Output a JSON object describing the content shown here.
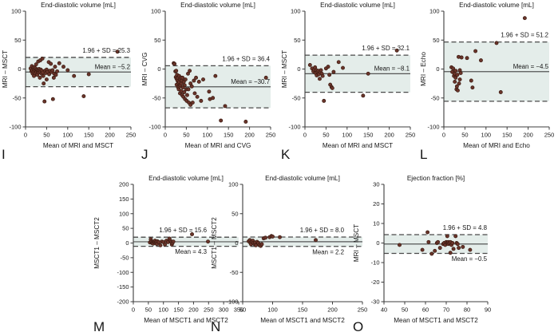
{
  "figure": {
    "background": "#ffffff",
    "description": "Bland-Altman agreement plots, panels I to O"
  },
  "style": {
    "point_fill": "#6a342a",
    "point_stroke": "#381a10",
    "band_fill": "#e4edea",
    "mean_line_color": "#555555",
    "dash_line_color": "#4a4a4a",
    "axis_color": "#3c3c3c",
    "text_color": "#161616"
  },
  "chart_data": [
    {
      "id": "I",
      "type": "scatter",
      "title": "End-diastolic volume [mL]",
      "xlabel": "Mean of MRI and MSCT",
      "ylabel": "MRI – MSCT",
      "xlim": [
        0,
        250
      ],
      "xticks": [
        0,
        50,
        100,
        150,
        200,
        250
      ],
      "ylim": [
        -100,
        100
      ],
      "yticks": [
        -100,
        -50,
        0,
        50,
        100
      ],
      "mean": -5.2,
      "loa_upper": 20.1,
      "loa_lower": -30.5,
      "sd_label": "1.96 + SD = 25.3",
      "mean_label": "Mean = −5.2",
      "mean_label_position": "above",
      "points": [
        [
          12,
          1
        ],
        [
          14,
          -4
        ],
        [
          15,
          5
        ],
        [
          16,
          -2
        ],
        [
          17,
          -8
        ],
        [
          18,
          2
        ],
        [
          19,
          -5
        ],
        [
          20,
          0
        ],
        [
          20,
          -12
        ],
        [
          21,
          3
        ],
        [
          22,
          -3
        ],
        [
          23,
          -7
        ],
        [
          24,
          1
        ],
        [
          25,
          8
        ],
        [
          25,
          -2
        ],
        [
          26,
          -5
        ],
        [
          27,
          -1
        ],
        [
          28,
          -10
        ],
        [
          29,
          -4
        ],
        [
          30,
          13
        ],
        [
          30,
          -2
        ],
        [
          31,
          -6
        ],
        [
          32,
          0
        ],
        [
          33,
          -3
        ],
        [
          34,
          -15
        ],
        [
          35,
          15
        ],
        [
          35,
          -5
        ],
        [
          36,
          -1
        ],
        [
          38,
          -8
        ],
        [
          39,
          -3
        ],
        [
          40,
          18
        ],
        [
          41,
          -6
        ],
        [
          42,
          -12
        ],
        [
          43,
          -25
        ],
        [
          45,
          -56
        ],
        [
          46,
          -3
        ],
        [
          48,
          -7
        ],
        [
          50,
          -1
        ],
        [
          50,
          -18
        ],
        [
          52,
          -5
        ],
        [
          55,
          12
        ],
        [
          56,
          -9
        ],
        [
          58,
          -3
        ],
        [
          60,
          9
        ],
        [
          62,
          -5
        ],
        [
          64,
          -2
        ],
        [
          65,
          -52
        ],
        [
          67,
          -15
        ],
        [
          68,
          -8
        ],
        [
          70,
          4
        ],
        [
          72,
          -10
        ],
        [
          75,
          -4
        ],
        [
          80,
          10
        ],
        [
          90,
          4
        ],
        [
          100,
          -2
        ],
        [
          115,
          -12
        ],
        [
          138,
          -47
        ],
        [
          150,
          -9
        ],
        [
          218,
          30
        ]
      ]
    },
    {
      "id": "J",
      "type": "scatter",
      "title": "End-diastolic volume [mL]",
      "xlabel": "Mean of MRI and CVG",
      "ylabel": "MRI – CVG",
      "xlim": [
        0,
        250
      ],
      "xticks": [
        0,
        50,
        100,
        150,
        200,
        250
      ],
      "ylim": [
        -100,
        100
      ],
      "yticks": [
        -100,
        -50,
        0,
        50,
        100
      ],
      "mean": -30.7,
      "loa_upper": 5.7,
      "loa_lower": -67.1,
      "sd_label": "1.96 + SD = 36.4",
      "mean_label": "Mean = −30.7",
      "mean_label_position": "above",
      "points": [
        [
          20,
          10
        ],
        [
          22,
          9
        ],
        [
          24,
          -4
        ],
        [
          25,
          -14
        ],
        [
          26,
          -3
        ],
        [
          27,
          -17
        ],
        [
          27,
          -27
        ],
        [
          28,
          -10
        ],
        [
          29,
          -20
        ],
        [
          30,
          -31
        ],
        [
          30,
          -15
        ],
        [
          31,
          -24
        ],
        [
          32,
          -35
        ],
        [
          33,
          -12
        ],
        [
          33,
          -22
        ],
        [
          34,
          -30
        ],
        [
          35,
          -42
        ],
        [
          35,
          -18
        ],
        [
          36,
          -28
        ],
        [
          37,
          -15
        ],
        [
          38,
          -25
        ],
        [
          38,
          -38
        ],
        [
          39,
          -20
        ],
        [
          40,
          -45
        ],
        [
          41,
          -15
        ],
        [
          42,
          -32
        ],
        [
          43,
          -48
        ],
        [
          44,
          -22
        ],
        [
          45,
          -40
        ],
        [
          46,
          -28
        ],
        [
          47,
          -52
        ],
        [
          48,
          -18
        ],
        [
          50,
          -35
        ],
        [
          51,
          -55
        ],
        [
          52,
          -45
        ],
        [
          54,
          -8
        ],
        [
          55,
          -35
        ],
        [
          56,
          -58
        ],
        [
          58,
          -3
        ],
        [
          60,
          -25
        ],
        [
          60,
          -62
        ],
        [
          63,
          -30
        ],
        [
          65,
          -58
        ],
        [
          68,
          -20
        ],
        [
          70,
          -42
        ],
        [
          73,
          -15
        ],
        [
          76,
          -48
        ],
        [
          80,
          -22
        ],
        [
          85,
          -55
        ],
        [
          90,
          -18
        ],
        [
          104,
          -39
        ],
        [
          106,
          -52
        ],
        [
          113,
          -50
        ],
        [
          119,
          -12
        ],
        [
          132,
          -89
        ],
        [
          142,
          -64
        ],
        [
          191,
          -91
        ],
        [
          239,
          -15
        ]
      ]
    },
    {
      "id": "K",
      "type": "scatter",
      "title": "End-diastolic volume [mL]",
      "xlabel": "Mean of MRI and MSCT",
      "ylabel": "MRI – MSCT",
      "xlim": [
        0,
        250
      ],
      "xticks": [
        0,
        50,
        100,
        150,
        200,
        250
      ],
      "ylim": [
        -100,
        100
      ],
      "yticks": [
        -100,
        -50,
        0,
        50,
        100
      ],
      "mean": -8.1,
      "loa_upper": 24.0,
      "loa_lower": -40.2,
      "sd_label": "1.96 + SD = 32.1",
      "mean_label": "Mean = −8.1",
      "mean_label_position": "above",
      "points": [
        [
          12,
          7
        ],
        [
          17,
          1
        ],
        [
          20,
          -4
        ],
        [
          22,
          -1
        ],
        [
          24,
          3
        ],
        [
          25,
          -7
        ],
        [
          27,
          -2
        ],
        [
          28,
          -11
        ],
        [
          30,
          -5
        ],
        [
          32,
          -3
        ],
        [
          33,
          -9
        ],
        [
          35,
          -17
        ],
        [
          36,
          -5
        ],
        [
          38,
          -2
        ],
        [
          40,
          -8
        ],
        [
          42,
          -12
        ],
        [
          45,
          -55
        ],
        [
          50,
          1
        ],
        [
          55,
          4
        ],
        [
          58,
          -10
        ],
        [
          60,
          -27
        ],
        [
          63,
          -31
        ],
        [
          65,
          -33
        ],
        [
          68,
          -5
        ],
        [
          80,
          12
        ],
        [
          90,
          2
        ],
        [
          138,
          -46
        ],
        [
          150,
          -8
        ],
        [
          218,
          32
        ]
      ]
    },
    {
      "id": "L",
      "type": "scatter",
      "title": "End-diastolic volume [mL]",
      "xlabel": "Mean of MRI and Echo",
      "ylabel": "MRI – Echo",
      "xlim": [
        0,
        250
      ],
      "xticks": [
        0,
        50,
        100,
        150,
        200,
        250
      ],
      "ylim": [
        -100,
        100
      ],
      "yticks": [
        -100,
        -50,
        0,
        50,
        100
      ],
      "mean": -4.5,
      "loa_upper": 46.7,
      "loa_lower": -55.7,
      "sd_label": "1.96 + SD = 51.2",
      "mean_label": "Mean = −4.5",
      "mean_label_position": "above",
      "points": [
        [
          18,
          3
        ],
        [
          20,
          -5
        ],
        [
          22,
          1
        ],
        [
          24,
          -12
        ],
        [
          25,
          -8
        ],
        [
          26,
          -22
        ],
        [
          28,
          -3
        ],
        [
          28,
          -15
        ],
        [
          30,
          -35
        ],
        [
          31,
          -30
        ],
        [
          32,
          -10
        ],
        [
          33,
          -37
        ],
        [
          35,
          21
        ],
        [
          36,
          -25
        ],
        [
          38,
          -2
        ],
        [
          38,
          -18
        ],
        [
          40,
          -7
        ],
        [
          42,
          20
        ],
        [
          55,
          19
        ],
        [
          65,
          -20
        ],
        [
          68,
          -32
        ],
        [
          75,
          31
        ],
        [
          88,
          15
        ],
        [
          125,
          45
        ],
        [
          135,
          -40
        ],
        [
          192,
          88
        ]
      ]
    },
    {
      "id": "M",
      "type": "scatter",
      "title": "End-diastolic volume [mL]",
      "xlabel": "Mean of MSCT1 and MSCT2",
      "ylabel": "MSCT1 – MSCT2",
      "xlim": [
        0,
        350
      ],
      "xticks": [
        0,
        50,
        100,
        150,
        200,
        250,
        300,
        350
      ],
      "ylim": [
        -200,
        200
      ],
      "yticks": [
        -200,
        -150,
        -100,
        -50,
        0,
        50,
        100,
        150,
        200
      ],
      "mean": 4.3,
      "loa_upper": 19.9,
      "loa_lower": -11.3,
      "sd_label": "1.96 + SD = 15.6",
      "mean_label": "Mean = 4.3",
      "mean_label_position": "below",
      "points": [
        [
          55,
          2
        ],
        [
          58,
          13
        ],
        [
          60,
          5
        ],
        [
          62,
          0
        ],
        [
          64,
          3
        ],
        [
          66,
          -2
        ],
        [
          68,
          5
        ],
        [
          70,
          2
        ],
        [
          72,
          8
        ],
        [
          74,
          0
        ],
        [
          76,
          4
        ],
        [
          78,
          -3
        ],
        [
          80,
          6
        ],
        [
          85,
          3
        ],
        [
          90,
          -8
        ],
        [
          95,
          5
        ],
        [
          100,
          3
        ],
        [
          105,
          -5
        ],
        [
          110,
          8
        ],
        [
          115,
          3
        ],
        [
          120,
          15
        ],
        [
          123,
          8
        ],
        [
          126,
          3
        ],
        [
          128,
          -5
        ],
        [
          130,
          0
        ],
        [
          133,
          5
        ],
        [
          195,
          30
        ],
        [
          248,
          5
        ]
      ]
    },
    {
      "id": "N",
      "type": "scatter",
      "title": "End-diastolic volume [mL]",
      "xlabel": "Mean of MSCT1 and MSCT2",
      "ylabel": "MSCT1 – MSCT2",
      "xlim": [
        50,
        250
      ],
      "xticks": [
        50,
        100,
        150,
        200,
        250
      ],
      "ylim": [
        -100,
        100
      ],
      "yticks": [
        -100,
        -50,
        0,
        50,
        100
      ],
      "mean": 2.2,
      "loa_upper": 10.2,
      "loa_lower": -5.8,
      "sd_label": "1.96 + SD = 8.0",
      "mean_label": "Mean = 2.2",
      "mean_label_position": "below",
      "points": [
        [
          60,
          3
        ],
        [
          62,
          5
        ],
        [
          63,
          0
        ],
        [
          64,
          -2
        ],
        [
          65,
          2
        ],
        [
          67,
          4
        ],
        [
          68,
          0
        ],
        [
          70,
          -2
        ],
        [
          71,
          1
        ],
        [
          72,
          -4
        ],
        [
          74,
          2
        ],
        [
          76,
          0
        ],
        [
          78,
          -3
        ],
        [
          80,
          -5
        ],
        [
          82,
          -2
        ],
        [
          85,
          8
        ],
        [
          88,
          9
        ],
        [
          95,
          10
        ],
        [
          98,
          12
        ],
        [
          100,
          11
        ],
        [
          112,
          10
        ],
        [
          172,
          5
        ]
      ]
    },
    {
      "id": "O",
      "type": "scatter",
      "title": "Ejection fraction [%]",
      "xlabel": "Mean of MSCT1 and MSCT2",
      "ylabel": "MRI – MSCT",
      "xlim": [
        40,
        90
      ],
      "xticks": [
        40,
        50,
        60,
        70,
        80,
        90
      ],
      "ylim": [
        -30,
        30
      ],
      "yticks": [
        -30,
        -20,
        -10,
        0,
        10,
        20,
        30
      ],
      "mean": -0.5,
      "loa_upper": 4.3,
      "loa_lower": -5.3,
      "sd_label": "1.96 + SD = 4.8",
      "mean_label": "Mean = −0.5",
      "mean_label_position": "below",
      "points": [
        [
          47.5,
          -1
        ],
        [
          58.5,
          -3.5
        ],
        [
          61,
          5.5
        ],
        [
          61.5,
          0.5
        ],
        [
          63,
          -5.5
        ],
        [
          64.5,
          -4
        ],
        [
          65.5,
          0
        ],
        [
          66,
          0.5
        ],
        [
          67,
          -2.5
        ],
        [
          68.5,
          -0.5
        ],
        [
          69,
          0
        ],
        [
          69.5,
          -1
        ],
        [
          70,
          0.5
        ],
        [
          70.5,
          3.5
        ],
        [
          70.5,
          0
        ],
        [
          71,
          -0.5
        ],
        [
          71,
          0.5
        ],
        [
          71.5,
          0
        ],
        [
          72,
          -5
        ],
        [
          72,
          0.5
        ],
        [
          72.5,
          -1
        ],
        [
          73,
          0
        ],
        [
          73.5,
          -3
        ],
        [
          74.5,
          3.5
        ],
        [
          75,
          0
        ],
        [
          75.5,
          -0.5
        ],
        [
          76,
          -2.5
        ],
        [
          78,
          -2
        ],
        [
          81.5,
          -3.5
        ]
      ]
    }
  ]
}
